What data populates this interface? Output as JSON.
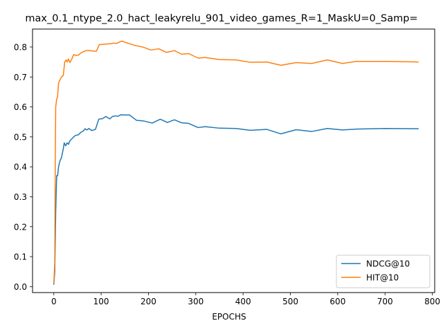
{
  "chart_data": {
    "type": "line",
    "title": "max_0.1_ntype_2.0_hact_leakyrelu_901_video_games_R=1_MaskU=0_Samp=",
    "xlabel": "EPOCHS",
    "ylabel": "",
    "xlim": [
      -45,
      805
    ],
    "ylim": [
      -0.02,
      0.86
    ],
    "xticks": [
      0,
      100,
      200,
      300,
      400,
      500,
      600,
      700,
      800
    ],
    "yticks": [
      0.0,
      0.1,
      0.2,
      0.3,
      0.4,
      0.5,
      0.6,
      0.7,
      0.8
    ],
    "grid": false,
    "legend_position": "lower-right",
    "series": [
      {
        "name": "NDCG@10",
        "color": "#1f77b4",
        "points": [
          [
            0,
            0.008
          ],
          [
            2,
            0.05
          ],
          [
            4,
            0.25
          ],
          [
            6,
            0.37
          ],
          [
            8,
            0.37
          ],
          [
            10,
            0.4
          ],
          [
            13,
            0.42
          ],
          [
            16,
            0.43
          ],
          [
            20,
            0.46
          ],
          [
            22,
            0.48
          ],
          [
            25,
            0.47
          ],
          [
            28,
            0.48
          ],
          [
            31,
            0.475
          ],
          [
            34,
            0.487
          ],
          [
            37,
            0.492
          ],
          [
            42,
            0.5
          ],
          [
            46,
            0.505
          ],
          [
            52,
            0.507
          ],
          [
            57,
            0.515
          ],
          [
            62,
            0.519
          ],
          [
            66,
            0.527
          ],
          [
            70,
            0.523
          ],
          [
            74,
            0.528
          ],
          [
            80,
            0.521
          ],
          [
            88,
            0.525
          ],
          [
            95,
            0.559
          ],
          [
            103,
            0.561
          ],
          [
            110,
            0.568
          ],
          [
            118,
            0.56
          ],
          [
            124,
            0.568
          ],
          [
            130,
            0.57
          ],
          [
            136,
            0.569
          ],
          [
            142,
            0.574
          ],
          [
            150,
            0.573
          ],
          [
            160,
            0.573
          ],
          [
            175,
            0.555
          ],
          [
            190,
            0.553
          ],
          [
            208,
            0.546
          ],
          [
            225,
            0.559
          ],
          [
            240,
            0.548
          ],
          [
            255,
            0.557
          ],
          [
            270,
            0.547
          ],
          [
            285,
            0.545
          ],
          [
            305,
            0.531
          ],
          [
            320,
            0.534
          ],
          [
            350,
            0.529
          ],
          [
            385,
            0.528
          ],
          [
            415,
            0.522
          ],
          [
            450,
            0.525
          ],
          [
            480,
            0.51
          ],
          [
            512,
            0.524
          ],
          [
            545,
            0.518
          ],
          [
            578,
            0.528
          ],
          [
            610,
            0.523
          ],
          [
            640,
            0.526
          ],
          [
            700,
            0.528
          ],
          [
            770,
            0.527
          ]
        ]
      },
      {
        "name": "HIT@10",
        "color": "#ff7f0e",
        "points": [
          [
            0,
            0.012
          ],
          [
            2,
            0.08
          ],
          [
            3,
            0.42
          ],
          [
            4,
            0.6
          ],
          [
            6,
            0.625
          ],
          [
            8,
            0.635
          ],
          [
            10,
            0.68
          ],
          [
            13,
            0.69
          ],
          [
            16,
            0.7
          ],
          [
            20,
            0.705
          ],
          [
            23,
            0.75
          ],
          [
            26,
            0.757
          ],
          [
            28,
            0.75
          ],
          [
            31,
            0.76
          ],
          [
            34,
            0.748
          ],
          [
            38,
            0.76
          ],
          [
            42,
            0.775
          ],
          [
            46,
            0.772
          ],
          [
            52,
            0.773
          ],
          [
            57,
            0.78
          ],
          [
            62,
            0.784
          ],
          [
            66,
            0.787
          ],
          [
            70,
            0.788
          ],
          [
            76,
            0.788
          ],
          [
            84,
            0.786
          ],
          [
            90,
            0.786
          ],
          [
            96,
            0.808
          ],
          [
            104,
            0.809
          ],
          [
            112,
            0.81
          ],
          [
            120,
            0.811
          ],
          [
            126,
            0.813
          ],
          [
            132,
            0.812
          ],
          [
            138,
            0.816
          ],
          [
            144,
            0.82
          ],
          [
            152,
            0.815
          ],
          [
            160,
            0.811
          ],
          [
            172,
            0.805
          ],
          [
            188,
            0.8
          ],
          [
            205,
            0.79
          ],
          [
            222,
            0.794
          ],
          [
            238,
            0.782
          ],
          [
            255,
            0.788
          ],
          [
            270,
            0.776
          ],
          [
            285,
            0.778
          ],
          [
            305,
            0.763
          ],
          [
            320,
            0.765
          ],
          [
            350,
            0.758
          ],
          [
            385,
            0.757
          ],
          [
            415,
            0.749
          ],
          [
            450,
            0.75
          ],
          [
            480,
            0.739
          ],
          [
            512,
            0.748
          ],
          [
            545,
            0.745
          ],
          [
            578,
            0.757
          ],
          [
            610,
            0.745
          ],
          [
            640,
            0.752
          ],
          [
            700,
            0.752
          ],
          [
            770,
            0.75
          ]
        ]
      }
    ]
  }
}
